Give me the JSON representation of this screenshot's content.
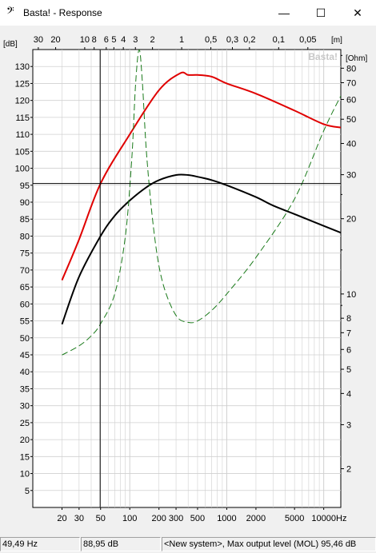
{
  "window": {
    "title": "Basta! - Response",
    "minimize_glyph": "—",
    "maximize_glyph": "☐",
    "close_glyph": "✕"
  },
  "colors": {
    "spl_max": "#e00000",
    "response": "#000000",
    "impedance": "#1a7a1a",
    "grid": "#d0d0d0"
  },
  "icons": {
    "app": "bass-clef-icon"
  },
  "chart_data": {
    "type": "line",
    "x_scale": "log",
    "xlim": [
      10,
      15000
    ],
    "x_unit_label": "Hz",
    "x_ticks": [
      20,
      30,
      50,
      100,
      200,
      300,
      500,
      1000,
      2000,
      5000,
      10000
    ],
    "top_axis_unit": "[m]",
    "top_ticks": [
      "30",
      "20",
      "10",
      "8",
      "6",
      "5",
      "4",
      "3",
      "2",
      "1",
      "0,5",
      "0,3",
      "0,2",
      "0,1",
      "0,05"
    ],
    "top_ticks_hz": [
      11.4,
      17.2,
      34.3,
      42.9,
      57.2,
      68.6,
      85.8,
      114.3,
      171.5,
      343,
      686,
      1143,
      1715,
      3430,
      6860
    ],
    "y_left_label": "[dB]",
    "ylim": [
      0,
      135
    ],
    "y_left_ticks": [
      5,
      10,
      15,
      20,
      25,
      30,
      35,
      40,
      45,
      50,
      55,
      60,
      65,
      70,
      75,
      80,
      85,
      90,
      95,
      100,
      105,
      110,
      115,
      120,
      125,
      130
    ],
    "y_right_label": "[Ohm]",
    "y_right_scale": "log",
    "y_right_lim": [
      1.4,
      95
    ],
    "y_right_ticks": [
      2,
      3,
      4,
      5,
      6,
      7,
      8,
      10,
      20,
      30,
      40,
      50,
      60,
      70,
      80
    ],
    "cursor": {
      "x_hz": 49.49,
      "y_db": 95.5
    },
    "watermark": "Basta!",
    "series": [
      {
        "name": "",
        "axis": "left",
        "style": "solid",
        "color": "#e00000",
        "x": [
          20,
          30,
          50,
          100,
          200,
          330,
          400,
          500,
          700,
          1000,
          2000,
          5000,
          10000,
          15000
        ],
        "y": [
          67,
          79,
          95.5,
          110,
          123,
          128,
          127.5,
          127.5,
          127,
          125,
          122,
          117,
          113,
          112
        ]
      },
      {
        "name": "",
        "axis": "left",
        "style": "solid",
        "color": "#000000",
        "x": [
          20,
          30,
          50,
          70,
          100,
          150,
          200,
          300,
          400,
          500,
          700,
          1000,
          2000,
          3000,
          5000,
          10000,
          15000
        ],
        "y": [
          54,
          68,
          80,
          86,
          90.5,
          94.5,
          96.5,
          98,
          98,
          97.5,
          96.5,
          95,
          91.5,
          89,
          86.5,
          83,
          81
        ]
      },
      {
        "name": "",
        "axis": "right",
        "style": "dashed",
        "color": "#1a7a1a",
        "x": [
          20,
          30,
          40,
          50,
          70,
          90,
          105,
          115,
          125,
          135,
          150,
          180,
          220,
          300,
          400,
          500,
          700,
          1000,
          2000,
          5000,
          10000,
          15000
        ],
        "y": [
          5.7,
          6.2,
          6.8,
          7.6,
          10,
          17,
          35,
          70,
          95,
          70,
          35,
          17,
          11,
          8.2,
          7.7,
          7.8,
          8.6,
          10,
          14,
          24,
          45,
          62
        ]
      }
    ]
  },
  "status": {
    "frequency": "49,49 Hz",
    "level": "88,95 dB",
    "message": "<New system>, Max output level (MOL) 95,46 dB"
  }
}
